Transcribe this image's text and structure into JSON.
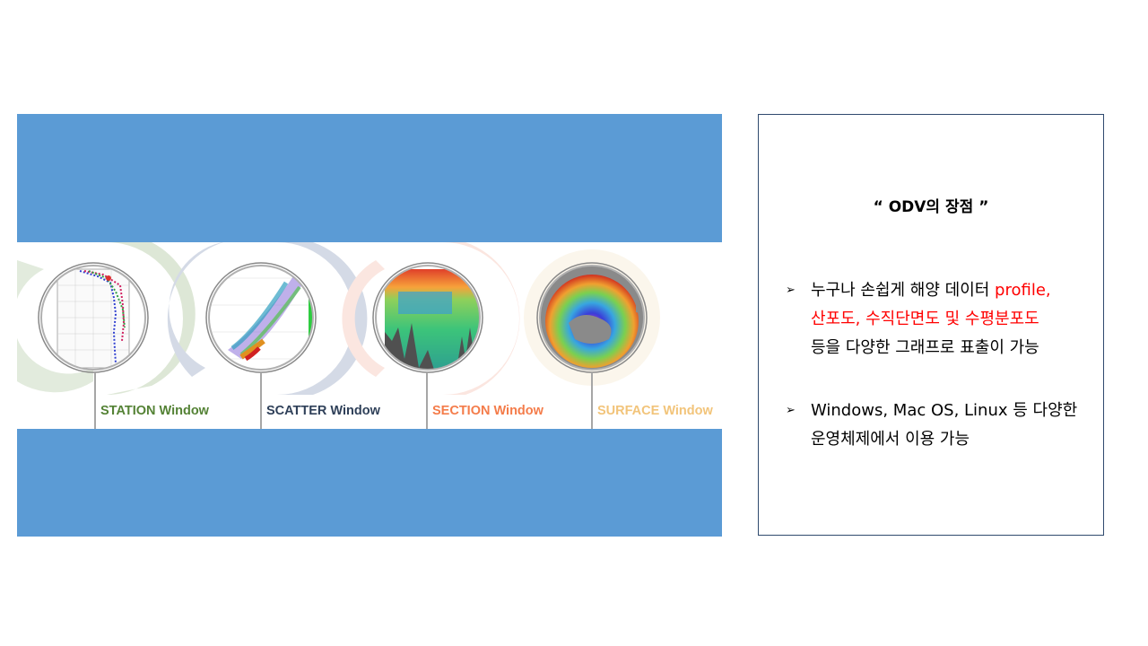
{
  "windows": [
    {
      "label": "STATION Window",
      "color": "#548235"
    },
    {
      "label": "SCATTER Window",
      "color": "#2f4059"
    },
    {
      "label": "SECTION Window",
      "color": "#f47c4a"
    },
    {
      "label": "SURFACE Window",
      "color": "#f2c47a"
    }
  ],
  "panel": {
    "title": "“ ODV의 장점 ”",
    "bullet_glyph": "➢",
    "b1_l1_a": "누구나 손쉽게 해양 데이터 ",
    "b1_l1_b": "profile,",
    "b1_l2": "산포도, 수직단면도 및 수평분포도",
    "b1_l3": "등을 다양한 그래프로 표출이 가능",
    "b2_l1": "Windows, Mac OS, Linux 등 다양한",
    "b2_l2": "운영체제에서 이용 가능"
  },
  "colors": {
    "accent_blue": "#5b9bd5",
    "highlight_red": "#ff0000"
  }
}
